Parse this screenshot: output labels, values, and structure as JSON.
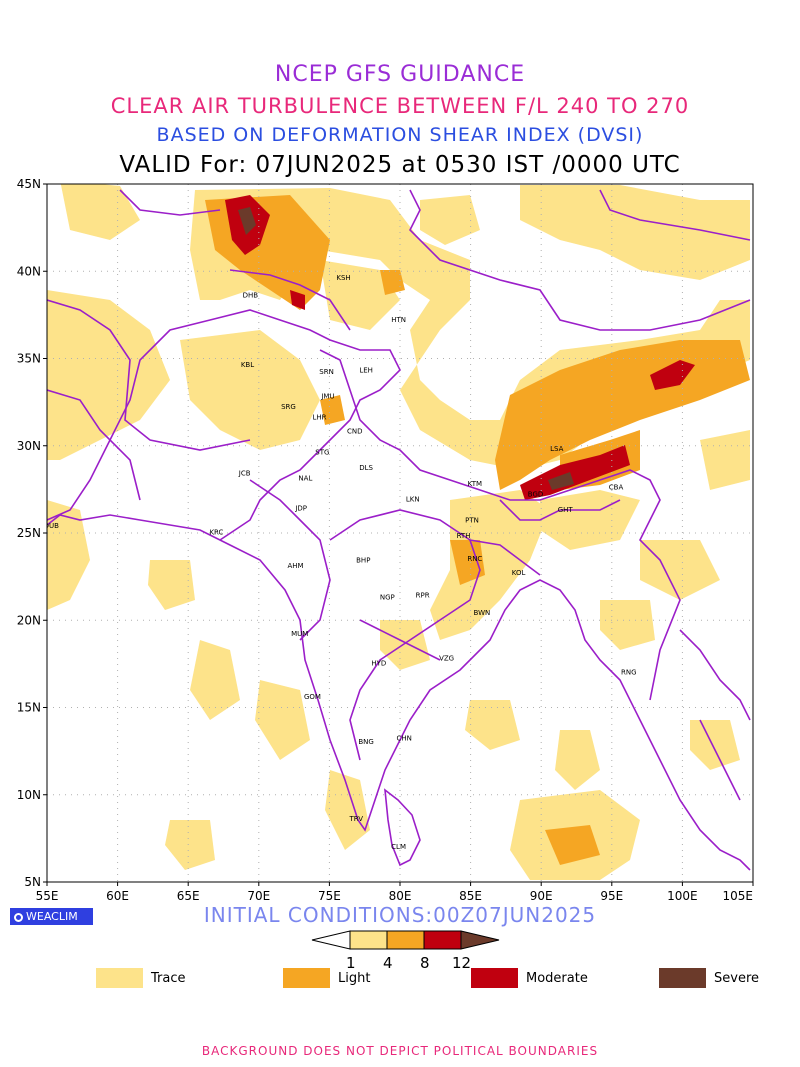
{
  "titles": {
    "line1": "NCEP GFS GUIDANCE",
    "line2": "CLEAR AIR TURBULENCE BETWEEN F/L 240 TO 270",
    "line3": "BASED ON DEFORMATION SHEAR INDEX (DVSI)",
    "line4": "VALID For: 07JUN2025 at 0530 IST /0000 UTC"
  },
  "map": {
    "lon_range": [
      55,
      105
    ],
    "lat_range": [
      5,
      45
    ],
    "lon_ticks": [
      "55E",
      "60E",
      "65E",
      "70E",
      "75E",
      "80E",
      "85E",
      "90E",
      "95E",
      "100E",
      "105E"
    ],
    "lat_ticks": [
      "5N",
      "10N",
      "15N",
      "20N",
      "25N",
      "30N",
      "35N",
      "40N",
      "45N"
    ],
    "gridlines": true,
    "colors": {
      "boundary": "#9b1fc9",
      "trace": "#fde38a",
      "light": "#f5a623",
      "moderate": "#c0000f",
      "severe": "#6b3a2a",
      "grid": "#b0b0b0"
    },
    "cities": [
      {
        "code": "DHB",
        "lon": 69.4,
        "lat": 38.5
      },
      {
        "code": "KSH",
        "lon": 76.0,
        "lat": 39.5
      },
      {
        "code": "HTN",
        "lon": 79.9,
        "lat": 37.1
      },
      {
        "code": "KBL",
        "lon": 69.2,
        "lat": 34.5
      },
      {
        "code": "SRN",
        "lon": 74.8,
        "lat": 34.1
      },
      {
        "code": "LEH",
        "lon": 77.6,
        "lat": 34.2
      },
      {
        "code": "JMU",
        "lon": 74.9,
        "lat": 32.7
      },
      {
        "code": "SRG",
        "lon": 72.1,
        "lat": 32.1
      },
      {
        "code": "LHR",
        "lon": 74.3,
        "lat": 31.5
      },
      {
        "code": "CND",
        "lon": 76.8,
        "lat": 30.7
      },
      {
        "code": "STG",
        "lon": 74.5,
        "lat": 29.5
      },
      {
        "code": "DLS",
        "lon": 77.6,
        "lat": 28.6
      },
      {
        "code": "LSA",
        "lon": 91.1,
        "lat": 29.7
      },
      {
        "code": "JCB",
        "lon": 69.0,
        "lat": 28.3
      },
      {
        "code": "NAL",
        "lon": 73.3,
        "lat": 28.0
      },
      {
        "code": "KTM",
        "lon": 85.3,
        "lat": 27.7
      },
      {
        "code": "BGD",
        "lon": 89.6,
        "lat": 27.1
      },
      {
        "code": "CBA",
        "lon": 95.3,
        "lat": 27.5
      },
      {
        "code": "JDP",
        "lon": 73.0,
        "lat": 26.3
      },
      {
        "code": "LKN",
        "lon": 80.9,
        "lat": 26.8
      },
      {
        "code": "GHT",
        "lon": 91.7,
        "lat": 26.2
      },
      {
        "code": "PTN",
        "lon": 85.1,
        "lat": 25.6
      },
      {
        "code": "DUB",
        "lon": 55.3,
        "lat": 25.3
      },
      {
        "code": "KRC",
        "lon": 67.0,
        "lat": 24.9
      },
      {
        "code": "RTH",
        "lon": 84.5,
        "lat": 24.7
      },
      {
        "code": "AHM",
        "lon": 72.6,
        "lat": 23.0
      },
      {
        "code": "BHP",
        "lon": 77.4,
        "lat": 23.3
      },
      {
        "code": "RNC",
        "lon": 85.3,
        "lat": 23.4
      },
      {
        "code": "KOL",
        "lon": 88.4,
        "lat": 22.6
      },
      {
        "code": "NGP",
        "lon": 79.1,
        "lat": 21.2
      },
      {
        "code": "RPR",
        "lon": 81.6,
        "lat": 21.3
      },
      {
        "code": "BWN",
        "lon": 85.8,
        "lat": 20.3
      },
      {
        "code": "MUM",
        "lon": 72.9,
        "lat": 19.1
      },
      {
        "code": "HYD",
        "lon": 78.5,
        "lat": 17.4
      },
      {
        "code": "VZG",
        "lon": 83.3,
        "lat": 17.7
      },
      {
        "code": "RNG",
        "lon": 96.2,
        "lat": 16.9
      },
      {
        "code": "GOM",
        "lon": 73.8,
        "lat": 15.5
      },
      {
        "code": "CHN",
        "lon": 80.3,
        "lat": 13.1
      },
      {
        "code": "BNG",
        "lon": 77.6,
        "lat": 12.9
      },
      {
        "code": "TRV",
        "lon": 76.9,
        "lat": 8.5
      },
      {
        "code": "CLM",
        "lon": 79.9,
        "lat": 6.9
      }
    ]
  },
  "logo": {
    "text": "WEACLIM"
  },
  "initial_conditions": "INITIAL CONDITIONS:00Z07JUN2025",
  "colorbar": {
    "thresholds": [
      "1",
      "4",
      "8",
      "12"
    ]
  },
  "legend": [
    {
      "label": "Trace",
      "color": "#fde38a"
    },
    {
      "label": "Light",
      "color": "#f5a623"
    },
    {
      "label": "Moderate",
      "color": "#c0000f"
    },
    {
      "label": "Severe",
      "color": "#6b3a2a"
    }
  ],
  "footer": "BACKGROUND DOES NOT DEPICT POLITICAL BOUNDARIES"
}
